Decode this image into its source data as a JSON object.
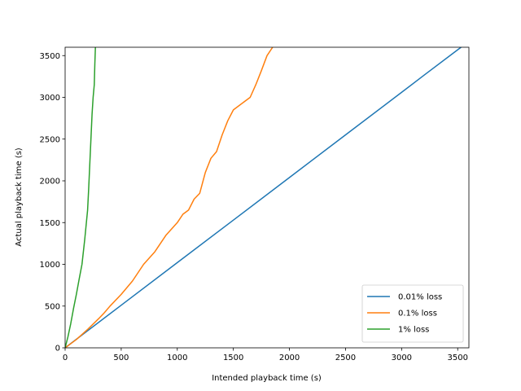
{
  "chart_data": {
    "type": "line",
    "title": "",
    "xlabel": "Intended playback time (s)",
    "ylabel": "Actual playback time (s)",
    "xlim": [
      0,
      3600
    ],
    "ylim": [
      0,
      3600
    ],
    "xticks": [
      0,
      500,
      1000,
      1500,
      2000,
      2500,
      3000,
      3500
    ],
    "yticks": [
      0,
      500,
      1000,
      1500,
      2000,
      2500,
      3000,
      3500
    ],
    "grid": false,
    "legend_position": "lower-right",
    "series": [
      {
        "name": "0.01% loss",
        "color": "#1f77b4",
        "x": [
          0,
          500,
          1000,
          1500,
          2000,
          2500,
          3000,
          3200,
          3500,
          3530
        ],
        "y": [
          0,
          510,
          1020,
          1530,
          2040,
          2550,
          3060,
          3265,
          3570,
          3600
        ]
      },
      {
        "name": "0.1% loss",
        "color": "#ff7f0e",
        "x": [
          0,
          100,
          200,
          300,
          350,
          400,
          500,
          600,
          700,
          800,
          900,
          1000,
          1050,
          1100,
          1150,
          1200,
          1250,
          1300,
          1350,
          1400,
          1450,
          1500,
          1600,
          1650,
          1700,
          1750,
          1800,
          1850
        ],
        "y": [
          0,
          100,
          220,
          350,
          420,
          500,
          640,
          800,
          1000,
          1150,
          1350,
          1500,
          1600,
          1650,
          1780,
          1850,
          2100,
          2270,
          2350,
          2550,
          2720,
          2850,
          2950,
          3000,
          3150,
          3320,
          3500,
          3600
        ]
      },
      {
        "name": "1% loss",
        "color": "#2ca02c",
        "x": [
          0,
          25,
          50,
          75,
          100,
          125,
          150,
          175,
          200,
          210,
          220,
          230,
          240,
          250,
          260,
          265,
          270
        ],
        "y": [
          0,
          130,
          290,
          470,
          640,
          820,
          1000,
          1300,
          1650,
          1900,
          2200,
          2500,
          2800,
          3000,
          3150,
          3400,
          3600
        ]
      }
    ]
  }
}
